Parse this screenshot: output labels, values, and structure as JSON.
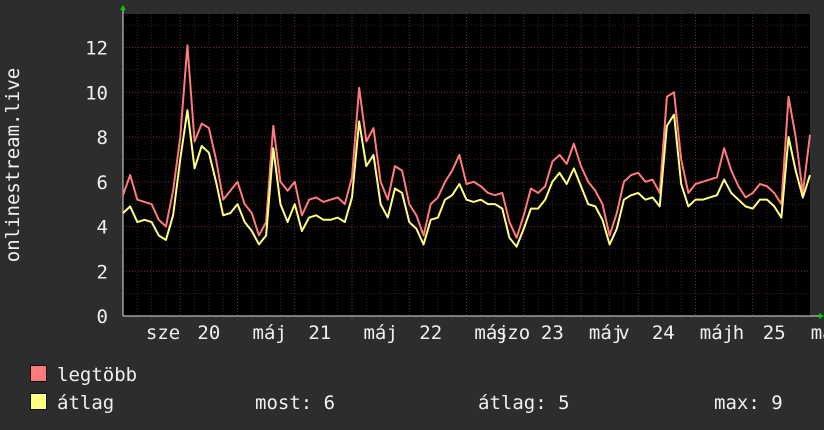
{
  "chart_data": {
    "type": "line",
    "ylabel": "onlinestream.live",
    "ylim": [
      0,
      13.5
    ],
    "yticks": [
      0,
      2,
      4,
      6,
      8,
      10,
      12
    ],
    "xlim": [
      0,
      96
    ],
    "xticks": [
      {
        "label": "sze",
        "x": 5.6
      },
      {
        "label": "20",
        "x": 12
      },
      {
        "label": "máj",
        "x": 20.5
      },
      {
        "label": "21",
        "x": 27.5
      },
      {
        "label": "máj",
        "x": 36
      },
      {
        "label": "22",
        "x": 43
      },
      {
        "label": "máj",
        "x": 51.5
      },
      {
        "label": "szo",
        "x": 54.5
      },
      {
        "label": "23",
        "x": 60
      },
      {
        "label": "máj",
        "x": 67.5
      },
      {
        "label": "v",
        "x": 70
      },
      {
        "label": "24",
        "x": 75.5
      },
      {
        "label": "máj",
        "x": 83
      },
      {
        "label": "h",
        "x": 86
      },
      {
        "label": "25",
        "x": 91
      },
      {
        "label": "máj",
        "x": 98.5
      }
    ],
    "series": [
      {
        "name": "legtöbb",
        "color": "#ff7b7b",
        "x": [
          0,
          1,
          2,
          3,
          4,
          5,
          6,
          7,
          8,
          9,
          10,
          11,
          12,
          13,
          14,
          15,
          16,
          17,
          18,
          19,
          20,
          21,
          22,
          23,
          24,
          25,
          26,
          27,
          28,
          29,
          30,
          31,
          32,
          33,
          34,
          35,
          36,
          37,
          38,
          39,
          40,
          41,
          42,
          43,
          44,
          45,
          46,
          47,
          48,
          49,
          50,
          51,
          52,
          53,
          54,
          55,
          56,
          57,
          58,
          59,
          60,
          61,
          62,
          63,
          64,
          65,
          66,
          67,
          68,
          69,
          70,
          71,
          72,
          73,
          74,
          75,
          76,
          77,
          78,
          79,
          80,
          81,
          82,
          83,
          84,
          85,
          86,
          87,
          88,
          89,
          90,
          91,
          92,
          93,
          94,
          95,
          96
        ],
        "values": [
          5.4,
          6.3,
          5.2,
          5.1,
          5.0,
          4.3,
          4.0,
          5.6,
          8.0,
          12.1,
          7.8,
          8.6,
          8.4,
          7.0,
          5.2,
          5.6,
          6.0,
          5.0,
          4.6,
          3.6,
          4.2,
          8.5,
          6.0,
          5.6,
          6.0,
          4.5,
          5.2,
          5.3,
          5.1,
          5.2,
          5.3,
          5.0,
          6.2,
          10.2,
          7.8,
          8.4,
          6.0,
          5.2,
          6.7,
          6.5,
          5.0,
          4.5,
          3.6,
          5.0,
          5.3,
          6.0,
          6.5,
          7.2,
          5.9,
          6.0,
          5.8,
          5.5,
          5.4,
          5.5,
          4.2,
          3.5,
          4.5,
          5.7,
          5.5,
          5.8,
          6.9,
          7.2,
          6.8,
          7.7,
          6.7,
          6.0,
          5.6,
          5.0,
          3.6,
          4.6,
          6.0,
          6.3,
          6.4,
          6.0,
          6.1,
          5.5,
          9.8,
          10.0,
          7.0,
          5.5,
          5.9,
          6.0,
          6.1,
          6.2,
          7.5,
          6.5,
          5.8,
          5.3,
          5.5,
          5.9,
          5.8,
          5.5,
          5.0,
          9.8,
          8.0,
          5.5,
          8.1
        ]
      },
      {
        "name": "átlag",
        "color": "#ffff80",
        "x": [
          0,
          1,
          2,
          3,
          4,
          5,
          6,
          7,
          8,
          9,
          10,
          11,
          12,
          13,
          14,
          15,
          16,
          17,
          18,
          19,
          20,
          21,
          22,
          23,
          24,
          25,
          26,
          27,
          28,
          29,
          30,
          31,
          32,
          33,
          34,
          35,
          36,
          37,
          38,
          39,
          40,
          41,
          42,
          43,
          44,
          45,
          46,
          47,
          48,
          49,
          50,
          51,
          52,
          53,
          54,
          55,
          56,
          57,
          58,
          59,
          60,
          61,
          62,
          63,
          64,
          65,
          66,
          67,
          68,
          69,
          70,
          71,
          72,
          73,
          74,
          75,
          76,
          77,
          78,
          79,
          80,
          81,
          82,
          83,
          84,
          85,
          86,
          87,
          88,
          89,
          90,
          91,
          92,
          93,
          94,
          95,
          96
        ],
        "values": [
          4.6,
          4.9,
          4.2,
          4.3,
          4.2,
          3.6,
          3.4,
          4.5,
          7.0,
          9.2,
          6.6,
          7.6,
          7.3,
          6.0,
          4.5,
          4.6,
          5.0,
          4.2,
          3.8,
          3.2,
          3.6,
          7.5,
          5.0,
          4.2,
          5.0,
          3.8,
          4.4,
          4.5,
          4.3,
          4.3,
          4.4,
          4.2,
          5.3,
          8.7,
          6.7,
          7.2,
          5.0,
          4.4,
          5.7,
          5.5,
          4.2,
          3.9,
          3.2,
          4.3,
          4.4,
          5.2,
          5.4,
          5.9,
          5.2,
          5.1,
          5.2,
          5.0,
          5.0,
          4.8,
          3.5,
          3.1,
          3.9,
          4.8,
          4.8,
          5.2,
          6.0,
          6.4,
          5.9,
          6.6,
          5.8,
          5.0,
          4.9,
          4.3,
          3.2,
          3.9,
          5.2,
          5.4,
          5.5,
          5.2,
          5.3,
          4.9,
          8.5,
          9.0,
          5.9,
          4.9,
          5.2,
          5.2,
          5.3,
          5.4,
          6.1,
          5.5,
          5.2,
          4.9,
          4.8,
          5.2,
          5.2,
          4.9,
          4.4,
          8.0,
          6.5,
          5.3,
          6.3
        ]
      }
    ],
    "grid": true,
    "legend": "bottom-left"
  },
  "legend": {
    "max_label": "legtöbb",
    "avg_label": "átlag",
    "max_color": "#ff7b7b",
    "avg_color": "#ffff80"
  },
  "stats": {
    "now": "most: 6",
    "avg": "átlag: 5",
    "max": "max: 9"
  }
}
